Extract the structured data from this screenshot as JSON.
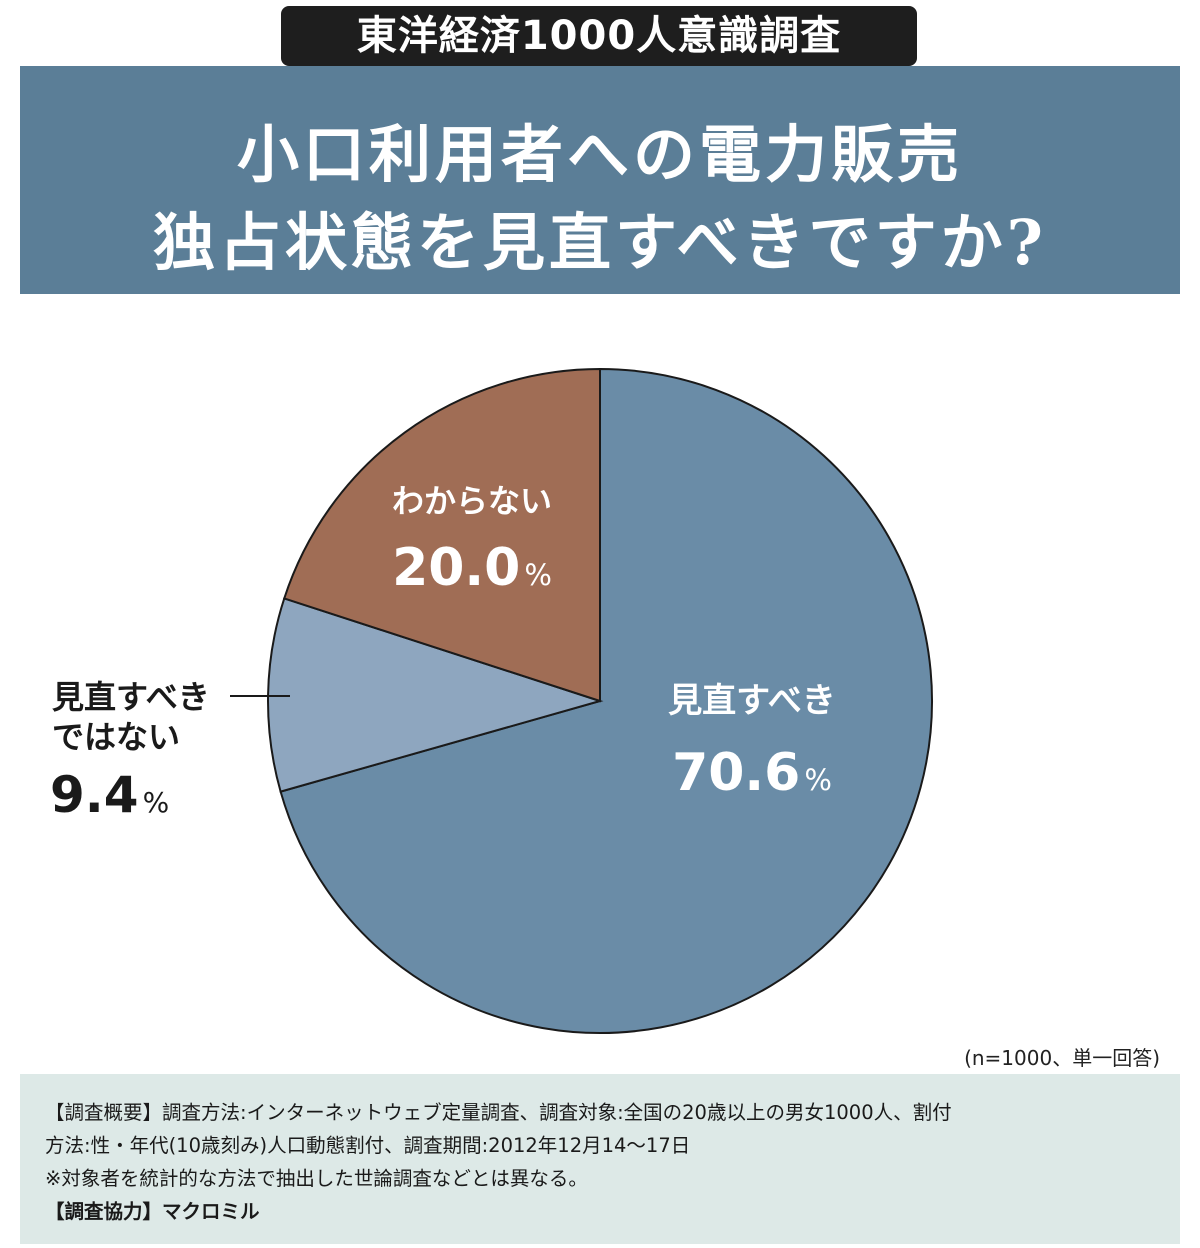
{
  "header": {
    "badge": "東洋経済1000人意識調査",
    "title_line1": "小口利用者への電力販売",
    "title_line2": "独占状態を見直すべきですか?"
  },
  "chart_data": {
    "type": "pie",
    "title": "小口利用者への電力販売独占状態を見直すべきですか?",
    "unit": "%",
    "slices": [
      {
        "label": "見直すべき",
        "value": 70.6,
        "value_text": "70.6",
        "color": "#6a8ca7",
        "label_color": "#ffffff"
      },
      {
        "label": "見直すべきではない",
        "label_lines": [
          "見直すべき",
          "ではない"
        ],
        "value": 9.4,
        "value_text": "9.4",
        "color": "#8ea6bf",
        "label_color": "#1a1a1a"
      },
      {
        "label": "わからない",
        "value": 20.0,
        "value_text": "20.0",
        "color": "#a06d55",
        "label_color": "#ffffff"
      }
    ],
    "start": "12 o'clock",
    "direction": "clockwise",
    "note": "(n=1000、単一回答)"
  },
  "method": {
    "heading": "【調査概要】",
    "line1": "調査方法:インターネットウェブ定量調査、調査対象:全国の20歳以上の男女1000人、割付",
    "line2": "方法:性・年代(10歳刻み)人口動態割付、調査期間:2012年12月14～17日",
    "line3": "※対象者を統計的な方法で抽出した世論調査などとは異なる。",
    "coop_heading": "【調査協力】",
    "coop_value": "マクロミル"
  }
}
